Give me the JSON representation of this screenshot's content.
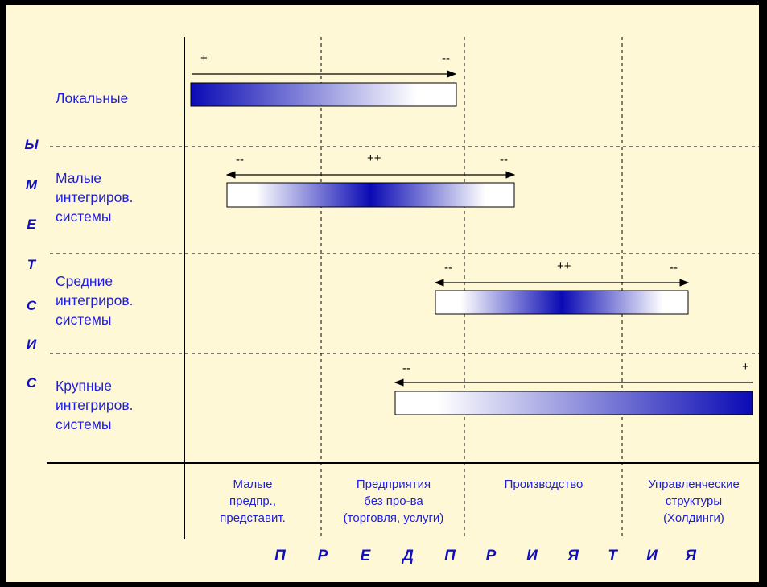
{
  "diagram": {
    "vertical_axis_title": [
      "С",
      "И",
      "С",
      "Т",
      "Е",
      "М",
      "Ы"
    ],
    "horizontal_axis_title": [
      "П",
      "Р",
      "Е",
      "Д",
      "П",
      "Р",
      "И",
      "Я",
      "Т",
      "И",
      "Я"
    ],
    "rows": [
      {
        "label": "Локальные"
      },
      {
        "label": "Малые\nинтегриров.\nсистемы"
      },
      {
        "label": "Средние\nинтегриров.\nсистемы"
      },
      {
        "label": "Крупные\nинтегриров.\nсистемы"
      }
    ],
    "columns": [
      {
        "label": "Малые\nпредпр.,\nпредставит."
      },
      {
        "label": "Предприятия\nбез про-ва\n(торговля, услуги)"
      },
      {
        "label": "Производство"
      },
      {
        "label": "Управленческие\nструктуры\n(Холдинги)"
      }
    ],
    "ranges": [
      {
        "row": "Локальные",
        "left_mark": "+",
        "center_mark": "",
        "right_mark": "--",
        "arrow": "right"
      },
      {
        "row": "Малые интегриров. системы",
        "left_mark": "--",
        "center_mark": "++",
        "right_mark": "--",
        "arrow": "both"
      },
      {
        "row": "Средние интегриров. системы",
        "left_mark": "--",
        "center_mark": "++",
        "right_mark": "--",
        "arrow": "both"
      },
      {
        "row": "Крупные интегриров. системы",
        "left_mark": "--",
        "center_mark": "",
        "right_mark": "+",
        "arrow": "left"
      }
    ],
    "colors": {
      "background": "#fff8d7",
      "text": "#1e1ee0",
      "gradient_dark": "#0a0ab4",
      "gradient_light": "#ffffff"
    }
  }
}
